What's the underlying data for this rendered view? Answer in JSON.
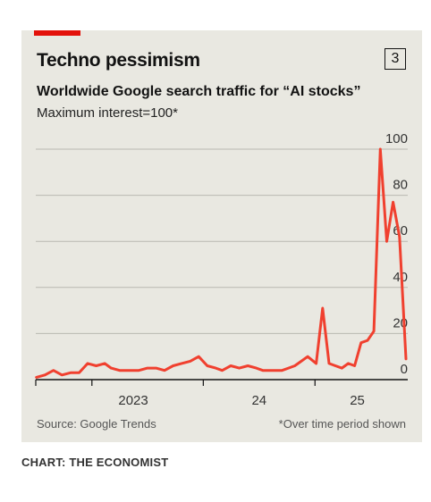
{
  "header": {
    "title": "Techno pessimism",
    "chart_number": "3",
    "subtitle": "Worldwide Google search traffic for “AI stocks”",
    "unit_note": "Maximum interest=100*"
  },
  "footer": {
    "source": "Source: Google Trends",
    "footnote": "*Over time period shown"
  },
  "credit": "CHART: THE ECONOMIST",
  "colors": {
    "accent": "#e3120b",
    "line": "#f0402f",
    "grid": "#b9b8b1"
  },
  "chart_data": {
    "type": "line",
    "title": "Worldwide Google search traffic for “AI stocks”",
    "xlabel": "",
    "ylabel": "Maximum interest=100*",
    "ylim": [
      0,
      100
    ],
    "yticks": [
      0,
      20,
      40,
      60,
      80,
      100
    ],
    "xlim": [
      "2022-07-01",
      "2025-11-01"
    ],
    "x_ticks": [
      "2023-01-01",
      "2024-01-01",
      "2025-01-01",
      "2026-01-01"
    ],
    "x_tick_labels": [
      "2023",
      "24",
      "25",
      ""
    ],
    "y_axis_position": "right",
    "grid": true,
    "series": [
      {
        "name": "",
        "x": [
          "2022-07-03",
          "2022-07-31",
          "2022-08-28",
          "2022-09-25",
          "2022-10-23",
          "2022-11-20",
          "2022-12-18",
          "2023-01-15",
          "2023-02-12",
          "2023-03-05",
          "2023-04-02",
          "2023-05-07",
          "2023-06-04",
          "2023-07-02",
          "2023-07-30",
          "2023-08-27",
          "2023-09-24",
          "2023-10-22",
          "2023-11-19",
          "2023-12-17",
          "2024-01-14",
          "2024-02-11",
          "2024-03-03",
          "2024-03-31",
          "2024-04-28",
          "2024-05-26",
          "2024-06-23",
          "2024-07-14",
          "2024-08-04",
          "2024-08-25",
          "2024-09-15",
          "2024-10-06",
          "2024-10-27",
          "2024-11-17",
          "2024-12-08",
          "2025-01-05",
          "2025-01-26",
          "2025-02-16",
          "2025-03-09",
          "2025-03-30",
          "2025-04-20",
          "2025-05-11",
          "2025-06-01",
          "2025-06-22",
          "2025-07-13",
          "2025-08-03",
          "2025-08-24",
          "2025-09-14",
          "2025-10-05",
          "2025-10-26"
        ],
        "y": [
          1,
          2,
          4,
          2,
          3,
          3,
          7,
          6,
          7,
          5,
          4,
          4,
          4,
          5,
          5,
          4,
          6,
          7,
          8,
          10,
          6,
          5,
          4,
          6,
          5,
          6,
          5,
          4,
          4,
          4,
          4,
          5,
          6,
          8,
          10,
          7,
          31,
          7,
          6,
          5,
          7,
          6,
          16,
          17,
          21,
          100,
          60,
          77,
          62,
          9
        ]
      }
    ]
  }
}
